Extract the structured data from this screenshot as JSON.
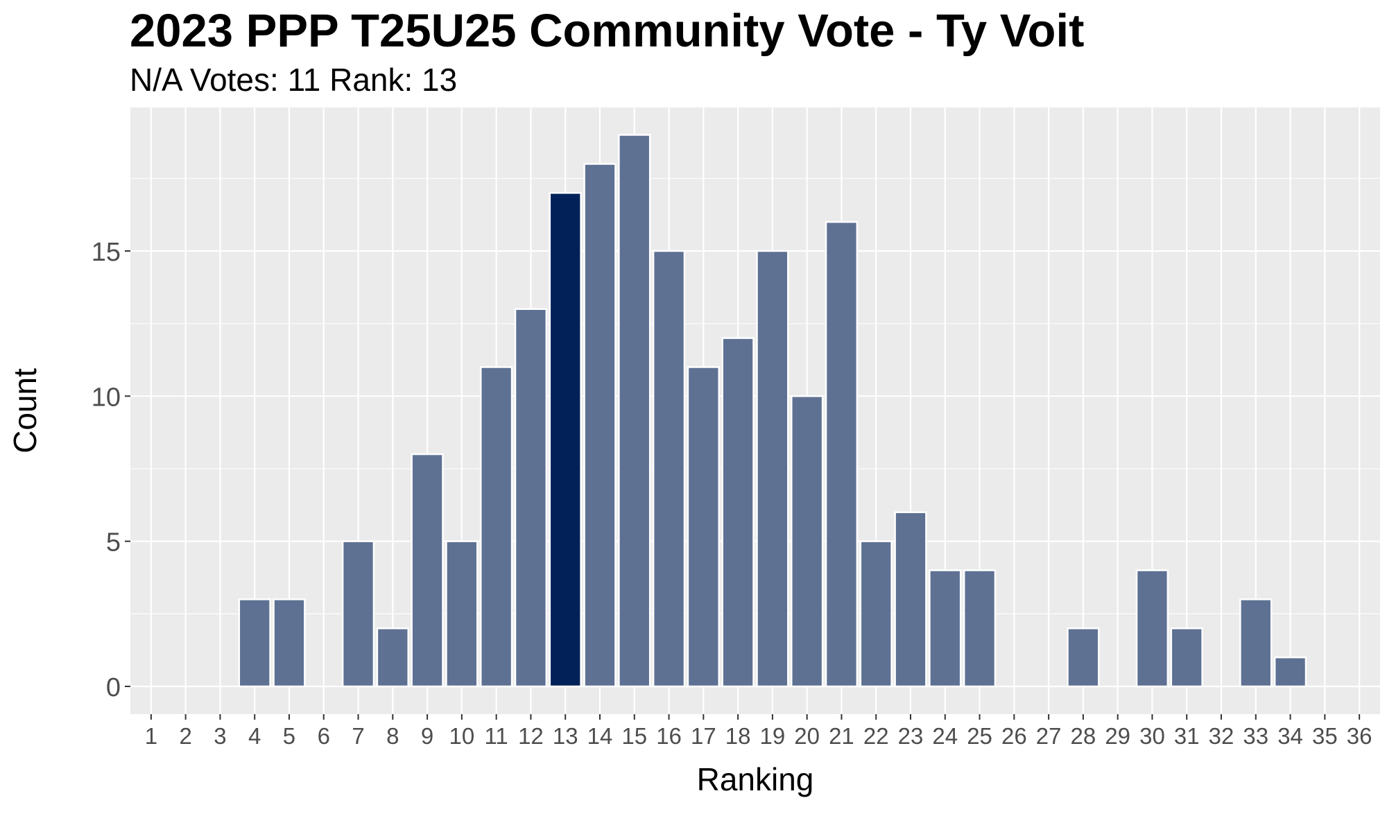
{
  "colors": {
    "panel_bg": "#EBEBEB",
    "grid_major": "#FFFFFF",
    "bar_fill": "#5E7193",
    "highlight_fill": "#022158",
    "bar_stroke": "#FFFFFF",
    "tick_text": "#4D4D4D"
  },
  "chart_data": {
    "type": "bar",
    "title": "2023 PPP T25U25 Community Vote - Ty Voit",
    "subtitle": "N/A Votes: 11  Rank: 13",
    "xlabel": "Ranking",
    "ylabel": "Count",
    "categories": [
      "1",
      "2",
      "3",
      "4",
      "5",
      "6",
      "7",
      "8",
      "9",
      "10",
      "11",
      "12",
      "13",
      "14",
      "15",
      "16",
      "17",
      "18",
      "19",
      "20",
      "21",
      "22",
      "23",
      "24",
      "25",
      "26",
      "27",
      "28",
      "29",
      "30",
      "31",
      "32",
      "33",
      "34",
      "35",
      "36"
    ],
    "values": [
      0,
      0,
      0,
      3,
      3,
      0,
      5,
      2,
      8,
      5,
      11,
      13,
      17,
      18,
      19,
      15,
      11,
      12,
      15,
      10,
      16,
      5,
      6,
      4,
      4,
      0,
      0,
      2,
      0,
      4,
      2,
      0,
      3,
      1,
      0,
      0
    ],
    "highlight_category": "13",
    "ylim": [
      0,
      20
    ],
    "yticks": [
      0,
      5,
      10,
      15
    ],
    "grid": true,
    "legend": "none"
  }
}
